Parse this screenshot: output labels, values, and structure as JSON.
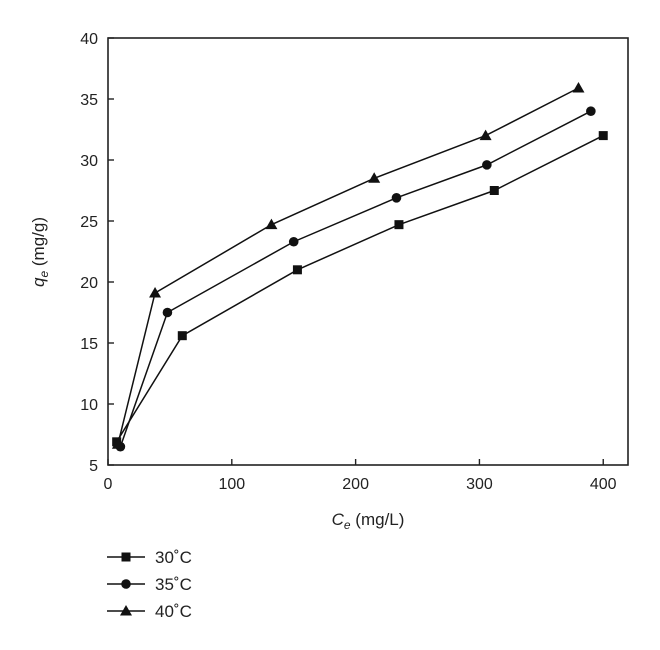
{
  "chart_data": {
    "type": "line",
    "xlabel": {
      "var": "C",
      "sub": "e",
      "unit": " (mg/L)"
    },
    "ylabel": {
      "var": "q",
      "sub": "e",
      "unit": " (mg/g)"
    },
    "xlim": [
      0,
      420
    ],
    "ylim": [
      5,
      40
    ],
    "xticks": [
      0,
      100,
      200,
      300,
      400
    ],
    "yticks": [
      5,
      10,
      15,
      20,
      25,
      30,
      35,
      40
    ],
    "grid": false,
    "legend_position": "bottom-left, below plot",
    "series": [
      {
        "name": "30˚C",
        "marker": "square",
        "x": [
          7,
          60,
          153,
          235,
          312,
          400
        ],
        "y": [
          6.9,
          15.6,
          21.0,
          24.7,
          27.5,
          32.0
        ]
      },
      {
        "name": "35˚C",
        "marker": "circle",
        "x": [
          10,
          48,
          150,
          233,
          306,
          390
        ],
        "y": [
          6.5,
          17.5,
          23.3,
          26.9,
          29.6,
          34.0
        ]
      },
      {
        "name": "40˚C",
        "marker": "triangle",
        "x": [
          8,
          38,
          132,
          215,
          305,
          380
        ],
        "y": [
          6.7,
          19.1,
          24.7,
          28.5,
          32.0,
          35.9
        ]
      }
    ]
  }
}
